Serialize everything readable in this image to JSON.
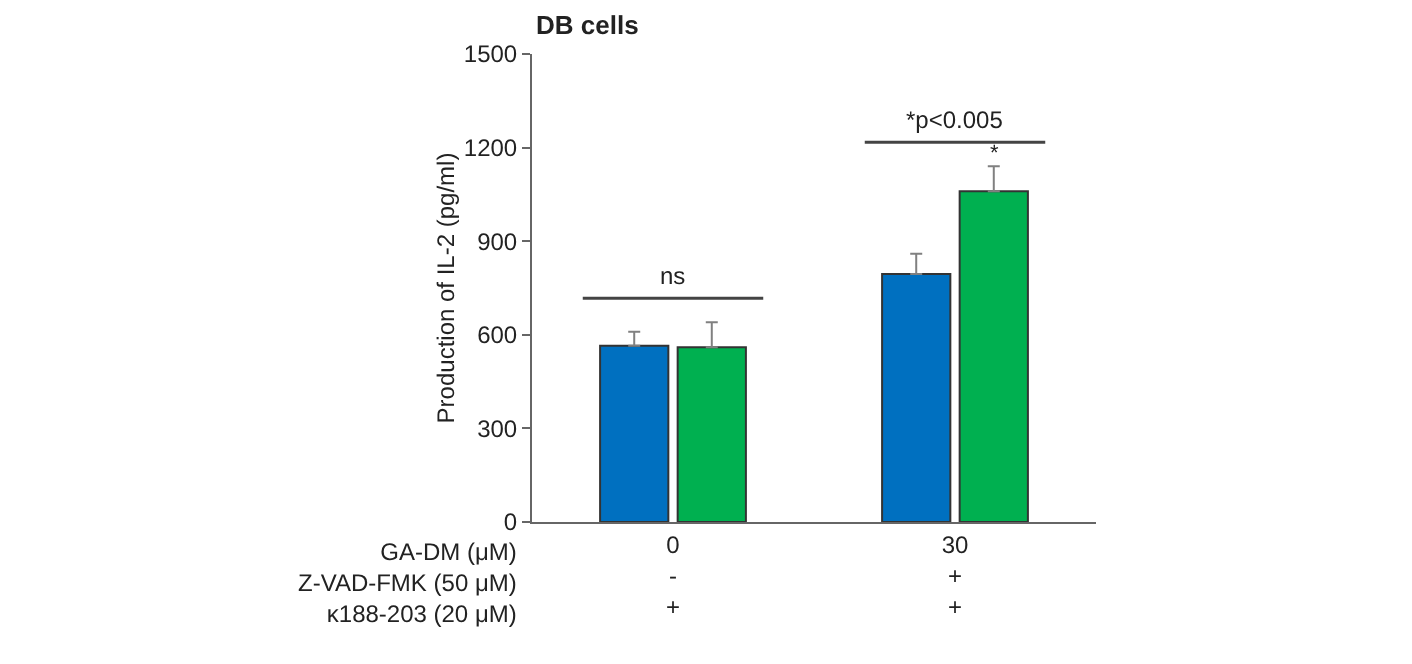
{
  "chart_data": {
    "type": "bar",
    "title": "DB cells",
    "ylabel": "Production of IL-2 (pg/ml)",
    "xlabel": "GA-DM (μM)\nZ-VAD-FMK (50 μM)\nκ188-203 (20 μM)",
    "categories": [
      "0\n-\n+",
      "30\n+\n+"
    ],
    "series": [
      {
        "color": "#0070c0",
        "values": [
          565,
          795
        ],
        "errors": [
          [
            565,
            610
          ],
          [
            795,
            860
          ]
        ]
      },
      {
        "color": "#00b050",
        "values": [
          560,
          1060
        ],
        "errors": [
          [
            560,
            640
          ],
          [
            1060,
            1140
          ]
        ]
      }
    ],
    "ylim": [
      0,
      1500
    ],
    "yticks": [
      0,
      300,
      600,
      900,
      1200,
      1500
    ],
    "grid": false,
    "annotations": [
      "ns",
      "*p<0.005",
      "*"
    ]
  }
}
